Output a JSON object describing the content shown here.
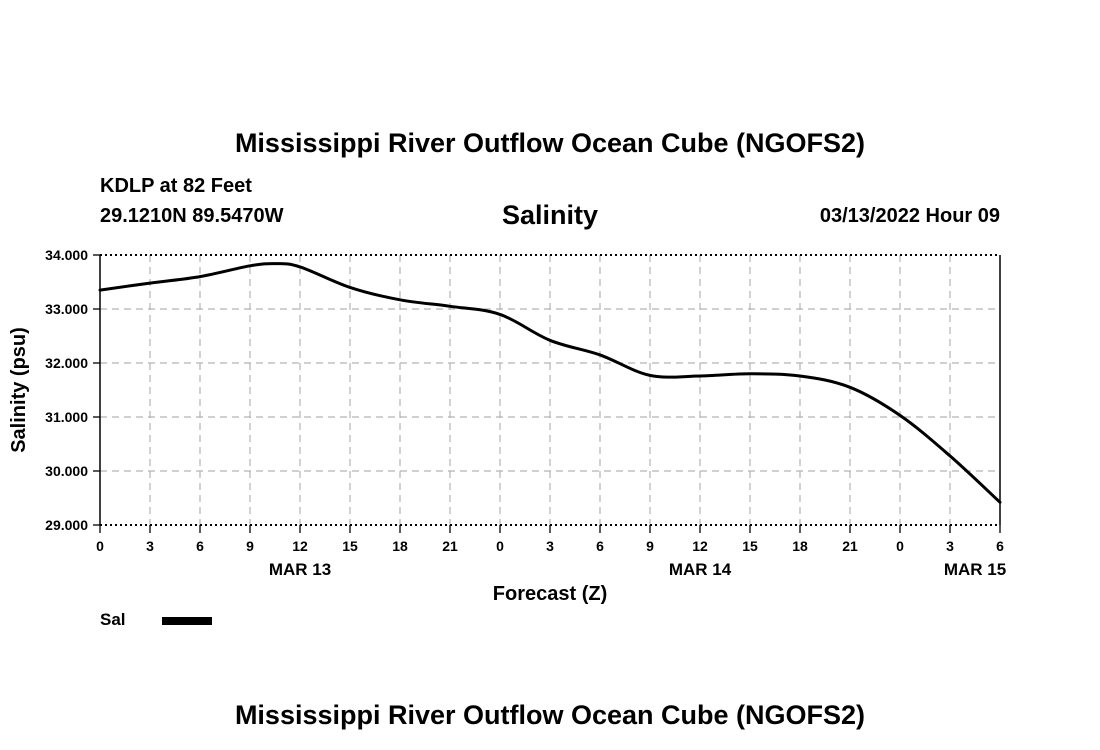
{
  "header": {
    "title": "Mississippi River Outflow Ocean Cube (NGOFS2)",
    "station": "KDLP at 82 Feet",
    "coordinates": "29.1210N  89.5470W",
    "variable": "Salinity",
    "timestamp": "03/13/2022 Hour 09"
  },
  "footer": {
    "title": "Mississippi River Outflow Ocean Cube (NGOFS2)"
  },
  "chart_data": {
    "type": "line",
    "title": "Salinity",
    "xlabel": "Forecast (Z)",
    "ylabel": "Salinity (psu)",
    "ylim": [
      29,
      34
    ],
    "xlim": [
      0,
      54
    ],
    "grid": true,
    "y_ticks": [
      "29.000",
      "30.000",
      "31.000",
      "32.000",
      "33.000",
      "34.000"
    ],
    "x_tick_labels": [
      "0",
      "3",
      "6",
      "9",
      "12",
      "15",
      "18",
      "21",
      "0",
      "3",
      "6",
      "9",
      "12",
      "15",
      "18",
      "21",
      "0",
      "3",
      "6"
    ],
    "date_labels": [
      {
        "label": "MAR 13",
        "hour": 12
      },
      {
        "label": "MAR 14",
        "hour": 36
      },
      {
        "label": "MAR 15",
        "hour": 52.5
      }
    ],
    "legend": {
      "label": "Sal",
      "placement": "bottom-left"
    },
    "series": [
      {
        "name": "Sal",
        "x": [
          0,
          3,
          6,
          9,
          10.5,
          12,
          15,
          18,
          21,
          24,
          27,
          30,
          33,
          36,
          39,
          42,
          45,
          48,
          51,
          54
        ],
        "values": [
          33.35,
          33.48,
          33.6,
          33.8,
          33.84,
          33.78,
          33.4,
          33.17,
          33.05,
          32.9,
          32.42,
          32.15,
          31.77,
          31.76,
          31.8,
          31.76,
          31.55,
          31.03,
          30.28,
          29.42
        ]
      }
    ]
  }
}
